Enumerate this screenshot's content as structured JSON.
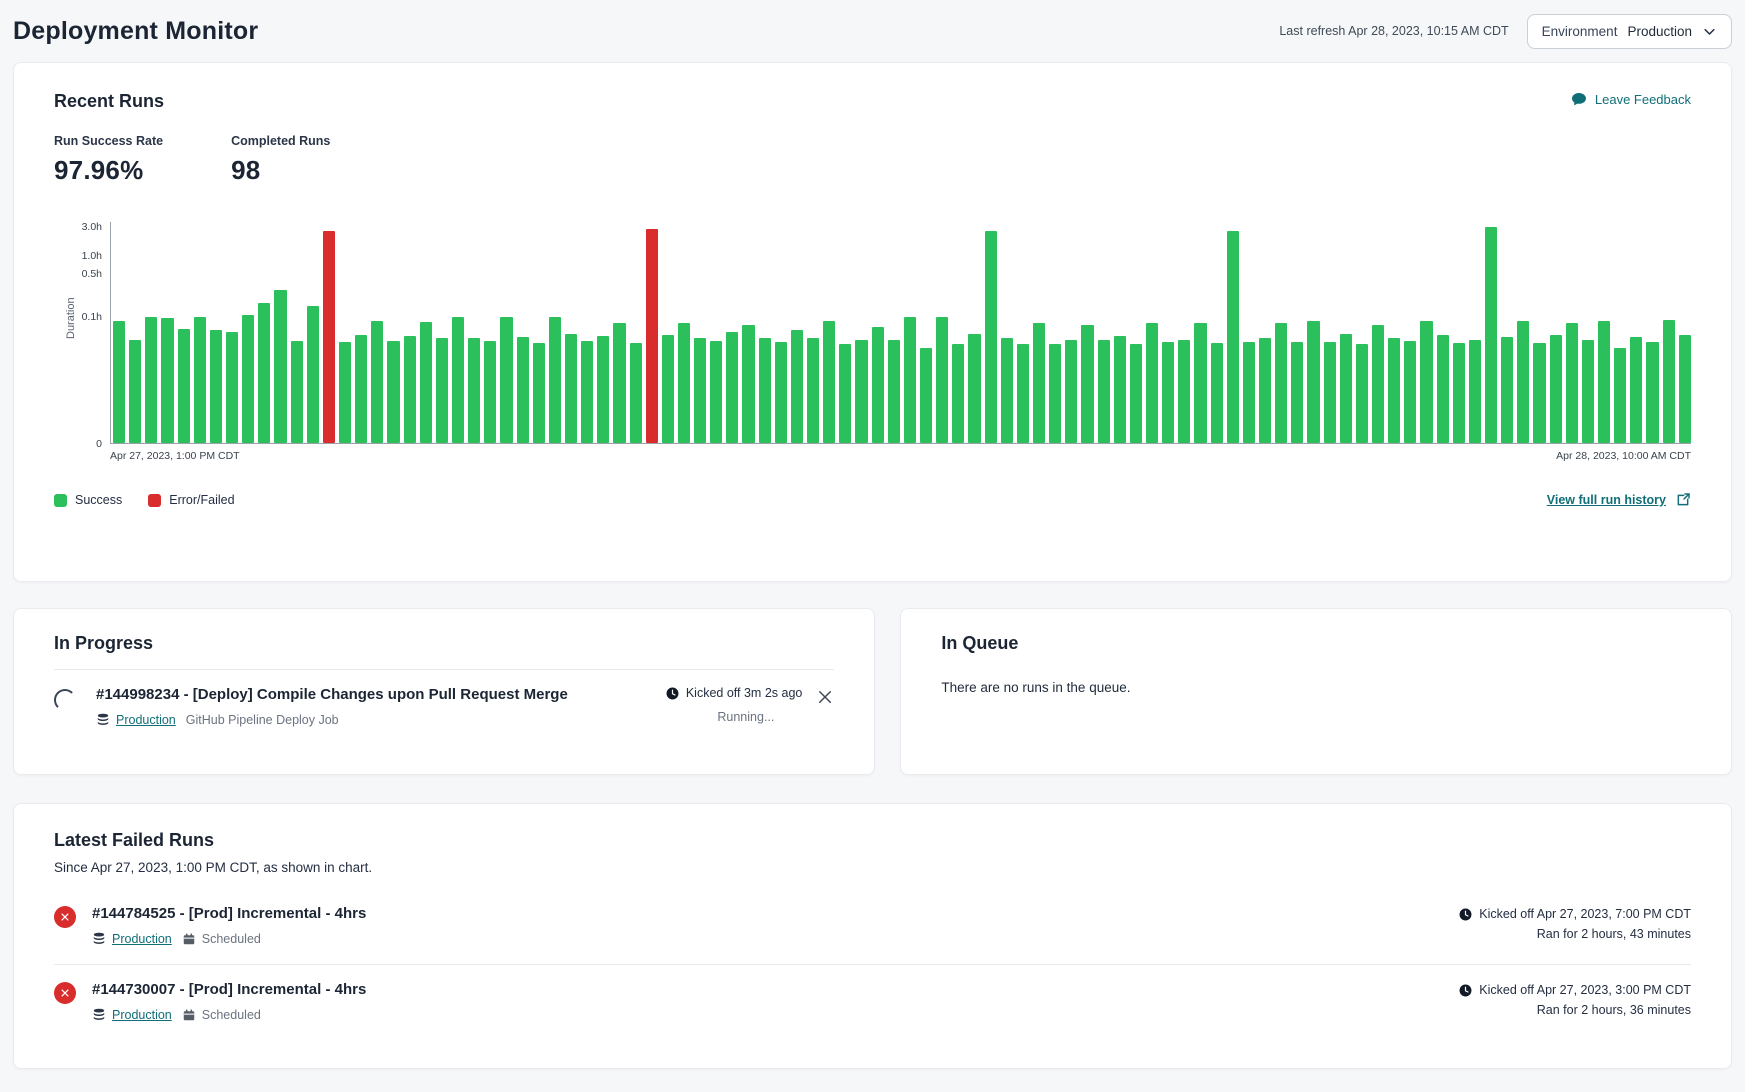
{
  "header": {
    "title": "Deployment Monitor",
    "last_refresh": "Last refresh Apr 28, 2023, 10:15 AM CDT",
    "environment_label": "Environment",
    "environment_value": "Production"
  },
  "recent_runs": {
    "title": "Recent Runs",
    "leave_feedback_label": "Leave Feedback",
    "stats": [
      {
        "label": "Run Success Rate",
        "value": "97.96%"
      },
      {
        "label": "Completed Runs",
        "value": "98"
      }
    ],
    "legend": [
      {
        "label": "Success",
        "color": "#2cc05c"
      },
      {
        "label": "Error/Failed",
        "color": "#d92c2c"
      }
    ],
    "view_history_label": "View full run history"
  },
  "chart_data": {
    "type": "bar",
    "title": "Recent run durations",
    "ylabel": "Duration",
    "unit": "hours",
    "y_scale": "log",
    "y_ticks": [
      {
        "label": "0",
        "value": 0
      },
      {
        "label": "0.1h",
        "value": 0.1
      },
      {
        "label": "0.5h",
        "value": 0.5
      },
      {
        "label": "1.0h",
        "value": 1.0
      },
      {
        "label": "3.0h",
        "value": 3.0
      }
    ],
    "x_start_label": "Apr 27, 2023, 1:00 PM CDT",
    "x_end_label": "Apr 28, 2023, 10:00 AM CDT",
    "success_color": "#2cc05c",
    "failed_color": "#d92c2c",
    "failed_indices": [
      13,
      33
    ],
    "values_hours": [
      0.085,
      0.042,
      0.1,
      0.095,
      0.062,
      0.1,
      0.06,
      0.055,
      0.105,
      0.17,
      0.27,
      0.04,
      0.15,
      2.6,
      0.038,
      0.05,
      0.085,
      0.04,
      0.048,
      0.082,
      0.045,
      0.1,
      0.045,
      0.04,
      0.1,
      0.046,
      0.037,
      0.1,
      0.052,
      0.04,
      0.048,
      0.077,
      0.037,
      2.72,
      0.05,
      0.08,
      0.044,
      0.04,
      0.055,
      0.074,
      0.044,
      0.038,
      0.06,
      0.044,
      0.083,
      0.036,
      0.041,
      0.068,
      0.041,
      0.1,
      0.03,
      0.097,
      0.036,
      0.052,
      2.6,
      0.044,
      0.035,
      0.077,
      0.036,
      0.042,
      0.074,
      0.041,
      0.048,
      0.036,
      0.077,
      0.038,
      0.041,
      0.08,
      0.037,
      2.6,
      0.038,
      0.044,
      0.077,
      0.038,
      0.083,
      0.038,
      0.052,
      0.035,
      0.074,
      0.044,
      0.04,
      0.086,
      0.05,
      0.037,
      0.042,
      3.0,
      0.046,
      0.083,
      0.037,
      0.049,
      0.08,
      0.041,
      0.083,
      0.03,
      0.046,
      0.038,
      0.088,
      0.049
    ]
  },
  "in_progress": {
    "title": "In Progress",
    "run": {
      "name": "#144998234 - [Deploy] Compile Changes upon Pull Request Merge",
      "environment": "Production",
      "job": "GitHub Pipeline Deploy Job",
      "kicked_off": "Kicked off 3m 2s ago",
      "status": "Running..."
    }
  },
  "in_queue": {
    "title": "In Queue",
    "empty_message": "There are no runs in the queue."
  },
  "failed_runs": {
    "title": "Latest Failed Runs",
    "subtitle": "Since Apr 27, 2023, 1:00 PM CDT, as shown in chart.",
    "runs": [
      {
        "name": "#144784525 - [Prod] Incremental - 4hrs",
        "environment": "Production",
        "trigger": "Scheduled",
        "kicked_off": "Kicked off Apr 27, 2023, 7:00 PM CDT",
        "ran_for": "Ran for 2 hours, 43 minutes"
      },
      {
        "name": "#144730007 - [Prod] Incremental - 4hrs",
        "environment": "Production",
        "trigger": "Scheduled",
        "kicked_off": "Kicked off Apr 27, 2023, 3:00 PM CDT",
        "ran_for": "Ran for 2 hours, 36 minutes"
      }
    ]
  }
}
